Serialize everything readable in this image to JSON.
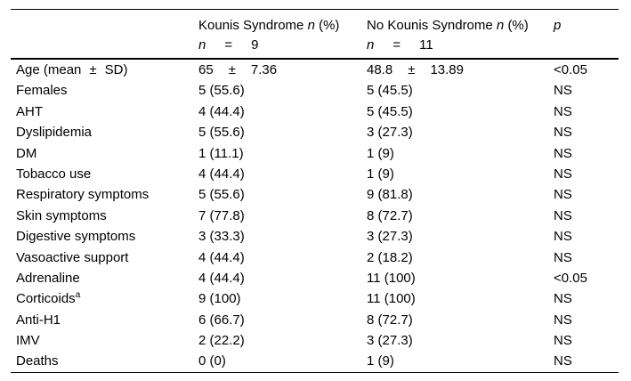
{
  "colors": {
    "background": "#ffffff",
    "text": "#000000",
    "rule": "#000000"
  },
  "table": {
    "header": {
      "kounis": {
        "title": "Kounis Syndrome",
        "n_symbol": "n",
        "pct": "(%)",
        "count_var": "n",
        "count_eq": "=",
        "count_val": "9"
      },
      "no_kounis": {
        "title": "No Kounis Syndrome",
        "n_symbol": "n",
        "pct": "(%)",
        "count_var": "n",
        "count_eq": "=",
        "count_val": "11"
      },
      "p_label": "p"
    },
    "rows": [
      {
        "label": "Age (mean\t±\tSD)",
        "kounis": "65\t±\t7.36",
        "no_kounis": "48.8\t±\t13.89",
        "p": "<0.05"
      },
      {
        "label": "Females",
        "kounis": "5 (55.6)",
        "no_kounis": "5 (45.5)",
        "p": "NS"
      },
      {
        "label": "AHT",
        "kounis": "4 (44.4)",
        "no_kounis": "5 (45.5)",
        "p": "NS"
      },
      {
        "label": "Dyslipidemia",
        "kounis": "5 (55.6)",
        "no_kounis": "3 (27.3)",
        "p": "NS"
      },
      {
        "label": "DM",
        "kounis": "1 (11.1)",
        "no_kounis": "1 (9)",
        "p": "NS"
      },
      {
        "label": "Tobacco use",
        "kounis": "4 (44.4)",
        "no_kounis": "1 (9)",
        "p": "NS"
      },
      {
        "label": "Respiratory symptoms",
        "kounis": "5 (55.6)",
        "no_kounis": "9 (81.8)",
        "p": "NS"
      },
      {
        "label": "Skin symptoms",
        "kounis": "7 (77.8)",
        "no_kounis": "8 (72.7)",
        "p": "NS"
      },
      {
        "label": "Digestive symptoms",
        "kounis": "3 (33.3)",
        "no_kounis": "3 (27.3)",
        "p": "NS"
      },
      {
        "label": "Vasoactive support",
        "kounis": "4 (44.4)",
        "no_kounis": "2 (18.2)",
        "p": "NS"
      },
      {
        "label": "Adrenaline",
        "kounis": "4 (44.4)",
        "no_kounis": "11 (100)",
        "p": "<0.05"
      },
      {
        "label": "Corticoids",
        "label_sup": "a",
        "kounis": "9 (100)",
        "no_kounis": "11 (100)",
        "p": "NS"
      },
      {
        "label": "Anti-H1",
        "kounis": "6 (66.7)",
        "no_kounis": "8 (72.7)",
        "p": "NS"
      },
      {
        "label": "IMV",
        "kounis": "2 (22.2)",
        "no_kounis": "3 (27.3)",
        "p": "NS"
      },
      {
        "label": "Deaths",
        "kounis": "0 (0)",
        "no_kounis": "1 (9)",
        "p": "NS"
      }
    ]
  }
}
